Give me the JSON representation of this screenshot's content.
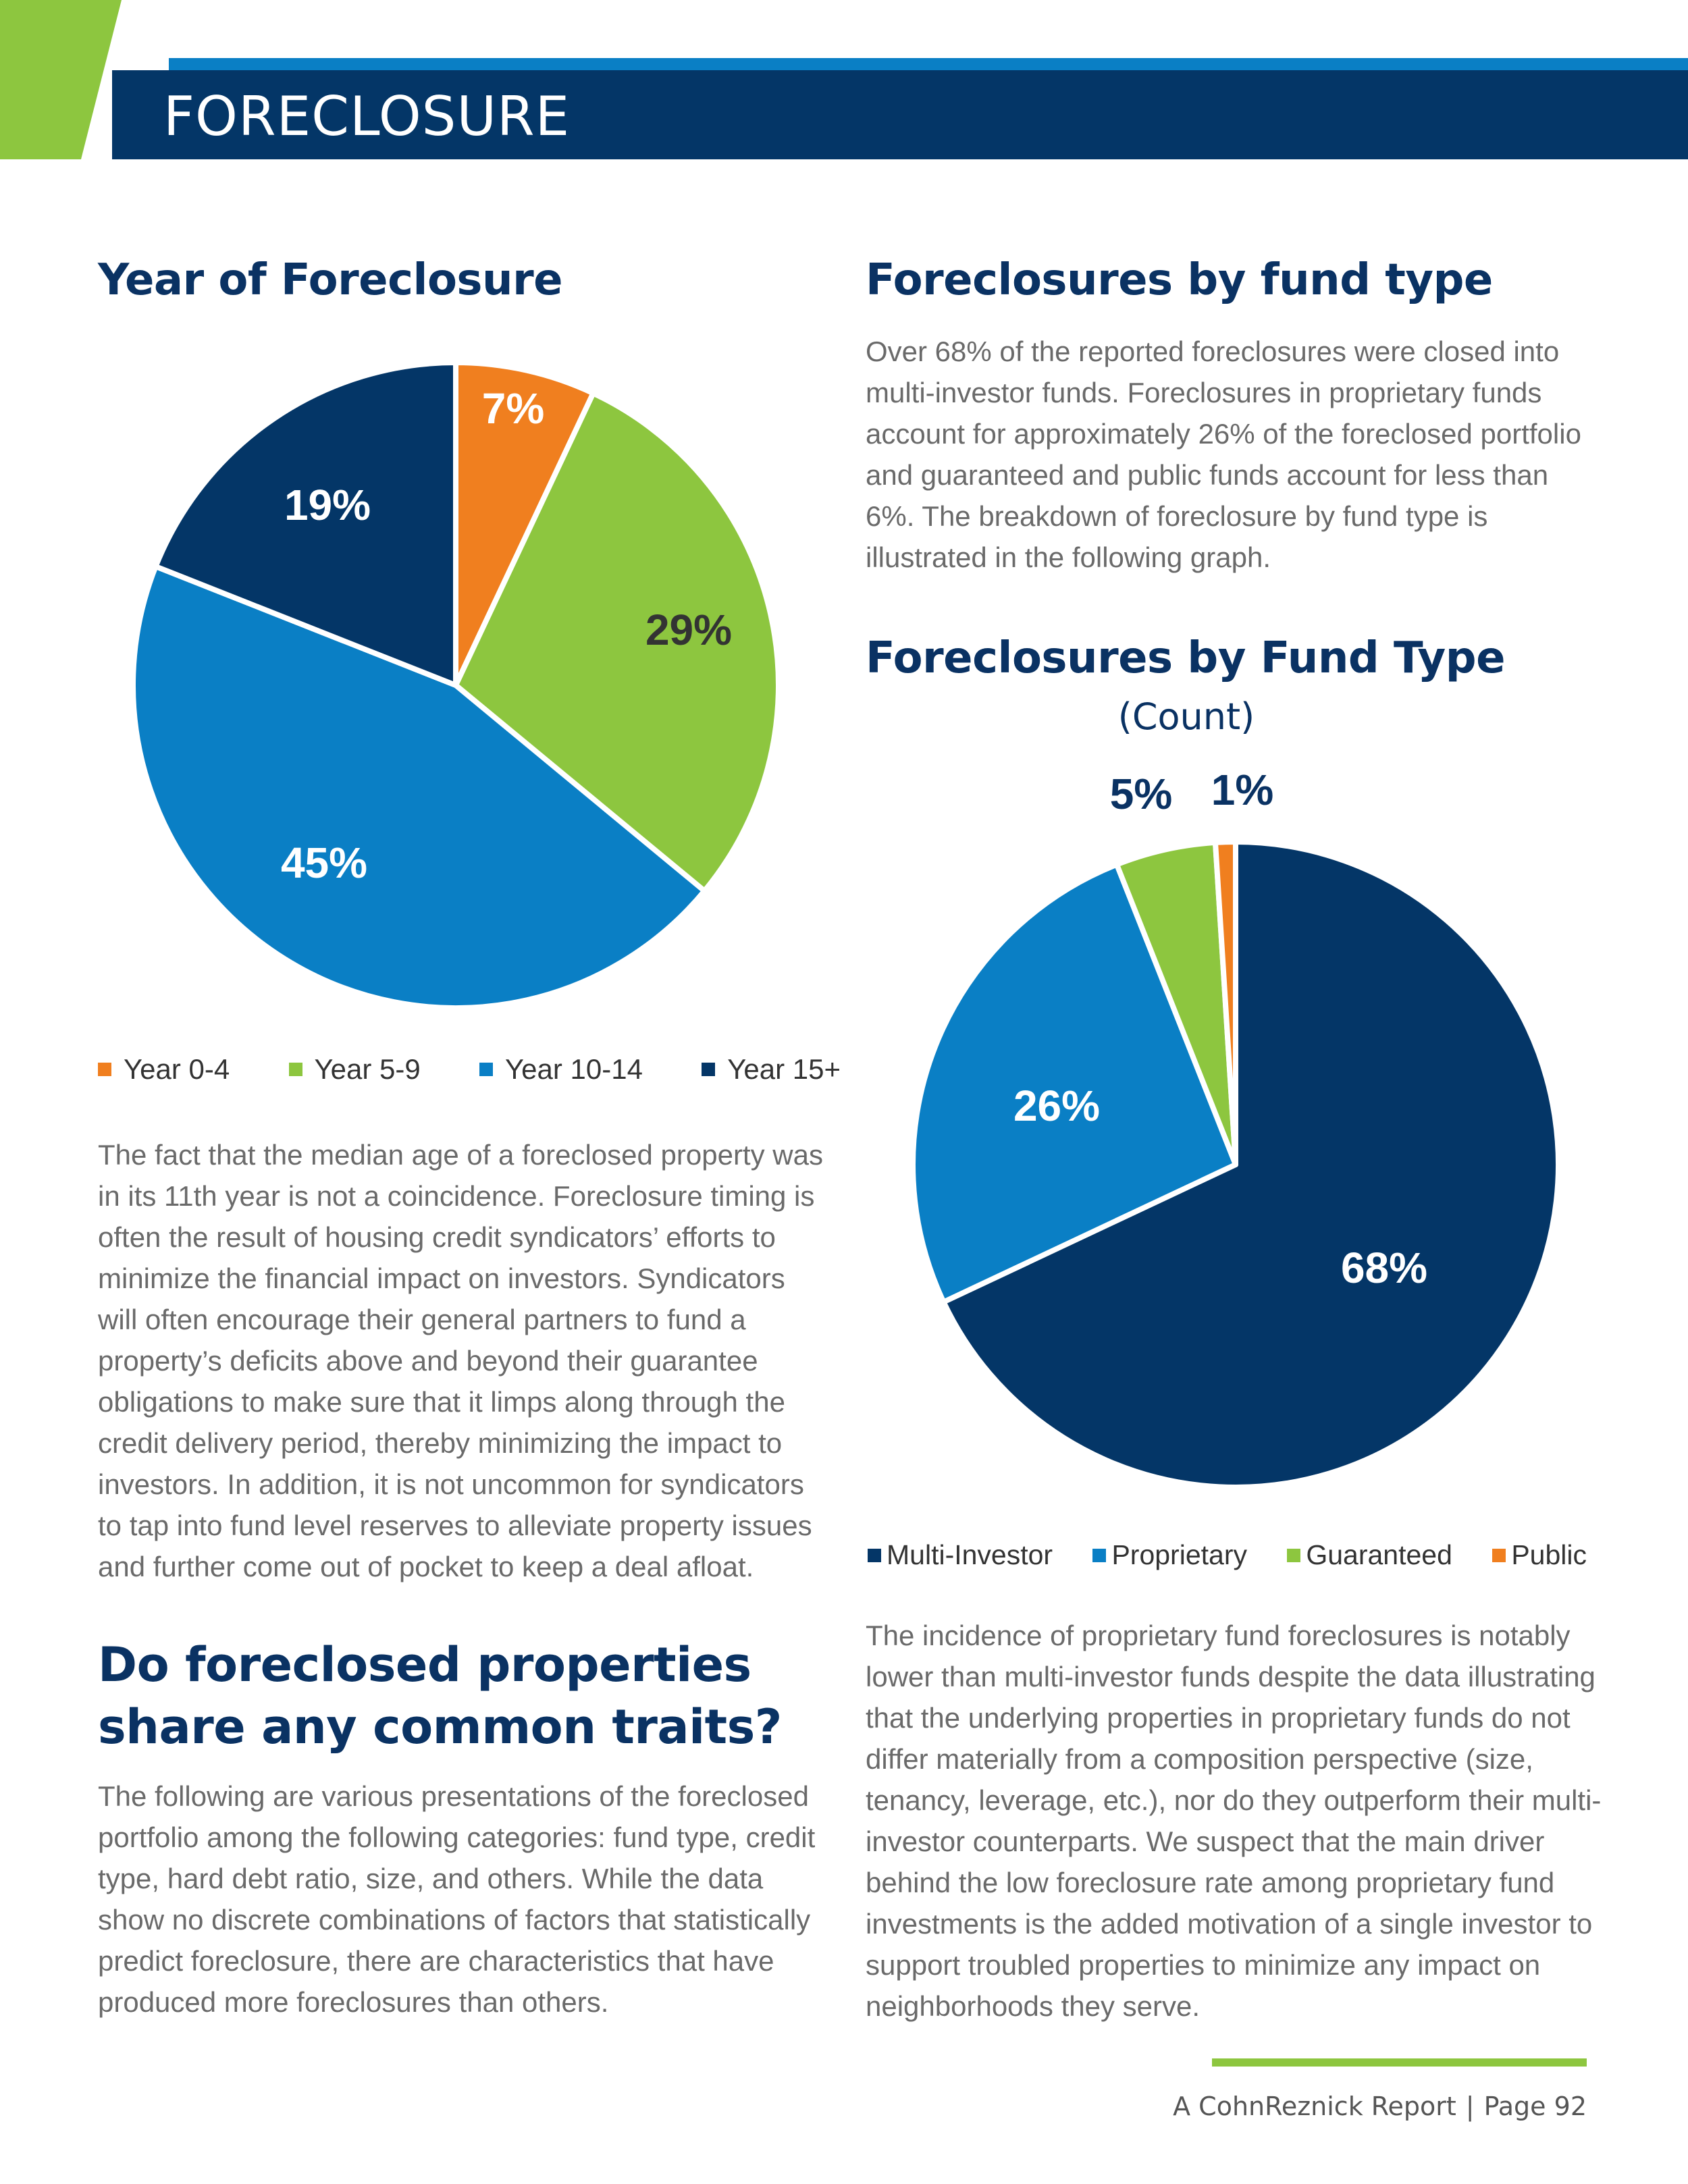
{
  "header": {
    "title": "FORECLOSURE"
  },
  "colors": {
    "navy": "#043667",
    "blue": "#0a7fc5",
    "green": "#8dc63f",
    "orange": "#f07f1f"
  },
  "left": {
    "chart_heading": "Year of Foreclosure",
    "paragraph1": "The fact that the median age of a foreclosed property was in its 11th year is not a coincidence. Foreclosure timing is often the result of housing credit syndicators’ efforts to minimize the financial impact on investors. Syndicators will often encourage their general partners to fund a property’s deficits above and beyond their guarantee obligations to make sure that it limps along through the credit delivery period, thereby minimizing the impact to investors. In addition, it is not uncommon for syndicators to tap into fund level reserves to alleviate property issues and further come out of pocket to keep a deal afloat.",
    "traits_heading": "Do foreclosed properties share any common traits?",
    "paragraph2": "The following are various presentations of the foreclosed portfolio among the following categories: fund type, credit type, hard debt ratio, size, and others. While the data show no discrete combinations of factors that statistically predict foreclosure, there are characteristics that have produced more foreclosures than others."
  },
  "right": {
    "heading": "Foreclosures by fund type",
    "paragraph1": "Over 68% of the reported foreclosures were closed into multi-investor funds. Foreclosures in proprietary funds account for approximately 26% of the foreclosed portfolio and guaranteed and public funds account for less than 6%. The breakdown of foreclosure by fund type is illustrated in the following graph.",
    "paragraph2": "The incidence of proprietary fund foreclosures is notably lower than multi-investor funds despite the data illustrating that the underlying properties in proprietary funds do not differ materially from a composition perspective (size, tenancy, leverage, etc.), nor do they outperform their multi-investor counterparts. We suspect that the main driver behind the low foreclosure rate among proprietary fund investments is the added motivation of a single investor to support troubled properties to minimize any impact on neighborhoods they serve."
  },
  "chart_data": [
    {
      "type": "pie",
      "title": "",
      "categories": [
        "Year 0-4",
        "Year 5-9",
        "Year 10-14",
        "Year 15+"
      ],
      "values": [
        7,
        29,
        45,
        19
      ],
      "labels": [
        "7%",
        "29%",
        "45%",
        "19%"
      ],
      "colors": [
        "#f07f1f",
        "#8dc63f",
        "#0a7fc5",
        "#043667"
      ],
      "legend": "bottom"
    },
    {
      "type": "pie",
      "title": "Foreclosures by Fund Type",
      "subtitle": "(Count)",
      "categories": [
        "Multi-Investor",
        "Proprietary",
        "Guaranteed",
        "Public"
      ],
      "values": [
        68,
        26,
        5,
        1
      ],
      "labels": [
        "68%",
        "26%",
        "5%",
        "1%"
      ],
      "colors": [
        "#043667",
        "#0a7fc5",
        "#8dc63f",
        "#f07f1f"
      ],
      "legend": "bottom"
    }
  ],
  "footer": {
    "report": "A CohnReznick Report",
    "separator": "|",
    "page": "Page 92"
  }
}
